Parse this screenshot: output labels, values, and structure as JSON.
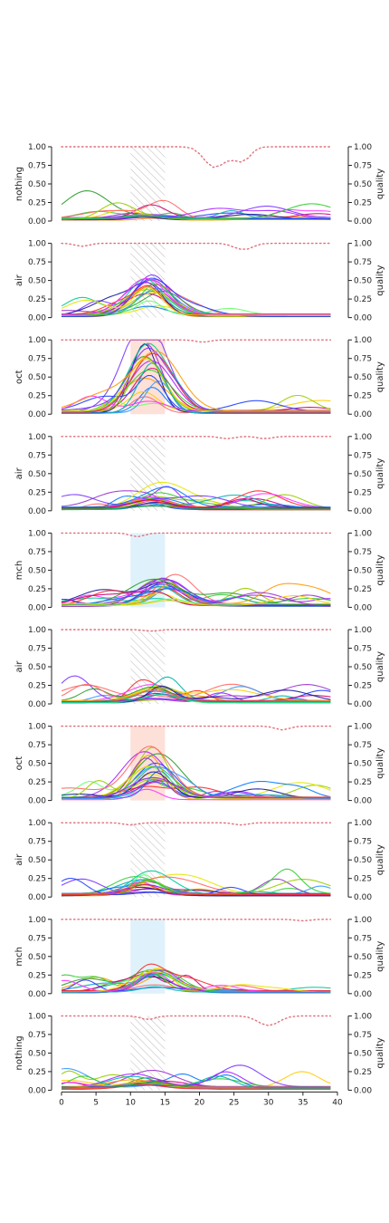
{
  "chart_data": {
    "type": "line",
    "xlim": [
      0,
      40
    ],
    "x_ticks": [
      "0",
      "5",
      "10",
      "15",
      "20",
      "25",
      "30",
      "35",
      "40"
    ],
    "ylim": [
      0,
      1
    ],
    "y_ticks": [
      "0.00",
      "0.25",
      "0.50",
      "0.75",
      "1.00"
    ],
    "right_axis_label": "quality",
    "x_range": [
      0,
      39
    ],
    "stimulus_window": [
      10,
      15
    ],
    "quality_color": "#e0707a",
    "window_colors": {
      "air": "#bbbbbb",
      "nothing": "#bbbbbb",
      "oct": "#fde0d8",
      "mch": "#dff2fb"
    },
    "panels": [
      {
        "label": "nothing",
        "window": "hatched",
        "peak": 0.05,
        "peak_center": 12.5,
        "quality": [
          {
            "x": 22,
            "depth": 0.26,
            "width": 1.4
          },
          {
            "x": 25,
            "depth": 0.12,
            "width": 1.5
          },
          {
            "x": 26.5,
            "depth": 0.12,
            "width": 1.0
          }
        ]
      },
      {
        "label": "air",
        "window": "hatched",
        "peak": 0.5,
        "peak_center": 13,
        "quality": [
          {
            "x": 3,
            "depth": 0.04,
            "width": 1.0
          },
          {
            "x": 25.5,
            "depth": 0.05,
            "width": 1.0
          },
          {
            "x": 27,
            "depth": 0.06,
            "width": 1.0
          }
        ]
      },
      {
        "label": "oct",
        "window": "oct",
        "peak": 0.95,
        "peak_center": 13,
        "quality": [
          {
            "x": 20.5,
            "depth": 0.03,
            "width": 1.0
          }
        ]
      },
      {
        "label": "air",
        "window": "hatched",
        "peak": 0.15,
        "peak_center": 13,
        "quality": [
          {
            "x": 24,
            "depth": 0.03,
            "width": 1.0
          },
          {
            "x": 29.5,
            "depth": 0.03,
            "width": 1.0
          }
        ]
      },
      {
        "label": "mch",
        "window": "mch",
        "peak": 0.35,
        "peak_center": 15,
        "quality": [
          {
            "x": 11,
            "depth": 0.05,
            "width": 1.0
          }
        ]
      },
      {
        "label": "air",
        "window": "hatched",
        "peak": 0.22,
        "peak_center": 14,
        "quality": [
          {
            "x": 13,
            "depth": 0.02,
            "width": 1.0
          }
        ]
      },
      {
        "label": "oct",
        "window": "oct",
        "peak": 0.62,
        "peak_center": 13,
        "quality": [
          {
            "x": 32,
            "depth": 0.05,
            "width": 1.0
          }
        ]
      },
      {
        "label": "air",
        "window": "hatched",
        "peak": 0.2,
        "peak_center": 12,
        "quality": [
          {
            "x": 10,
            "depth": 0.03,
            "width": 1.0
          },
          {
            "x": 26,
            "depth": 0.03,
            "width": 1.0
          }
        ]
      },
      {
        "label": "mch",
        "window": "mch",
        "peak": 0.3,
        "peak_center": 13.5,
        "quality": [
          {
            "x": 35,
            "depth": 0.02,
            "width": 1.0
          }
        ]
      },
      {
        "label": "nothing",
        "window": "hatched",
        "peak": 0.08,
        "peak_center": 12.5,
        "quality": [
          {
            "x": 12.5,
            "depth": 0.05,
            "width": 1.0
          },
          {
            "x": 30,
            "depth": 0.13,
            "width": 1.5
          }
        ]
      }
    ]
  }
}
